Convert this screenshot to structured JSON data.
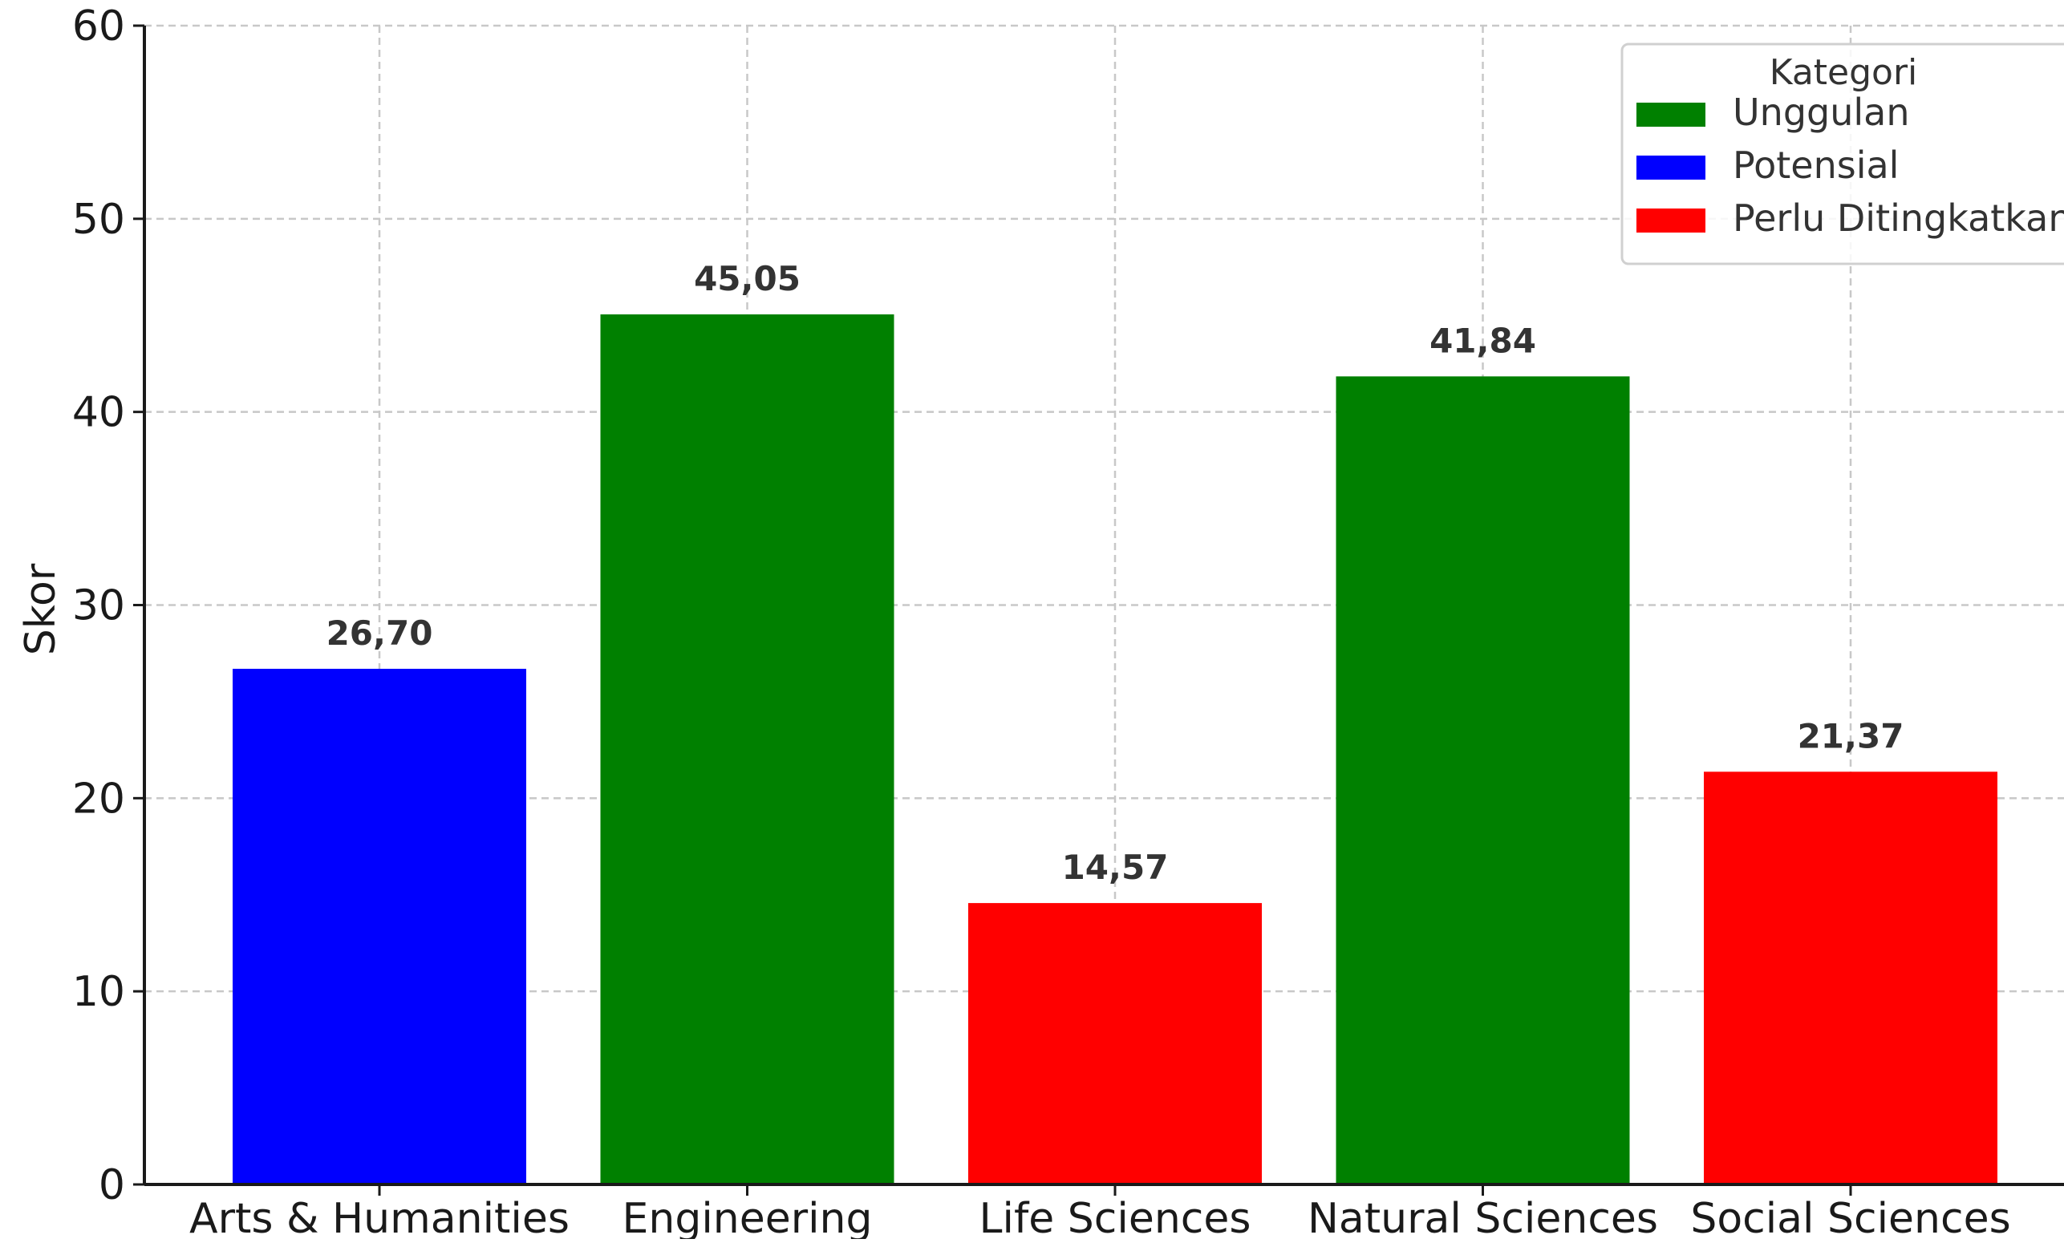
{
  "chart_data": {
    "type": "bar",
    "title": "",
    "xlabel": "",
    "ylabel": "Skor",
    "ylim": [
      0,
      60
    ],
    "yticks": [
      "0",
      "10",
      "20",
      "30",
      "40",
      "50",
      "60"
    ],
    "ytick_values": [
      0,
      10,
      20,
      30,
      40,
      50,
      60
    ],
    "categories": [
      "Arts & Humanities",
      "Engineering",
      "Life Sciences",
      "Natural Sciences",
      "Social Sciences"
    ],
    "values": [
      26.7,
      45.05,
      14.57,
      41.84,
      21.37
    ],
    "value_labels": [
      "26,70",
      "45,05",
      "14,57",
      "41,84",
      "21,37"
    ],
    "bar_category": [
      "Potensial",
      "Unggulan",
      "Perlu Ditingkatkan",
      "Unggulan",
      "Perlu Ditingkatkan"
    ],
    "grid": true,
    "legend": {
      "title": "Kategori",
      "placement": "top-right",
      "items": [
        {
          "label": "Unggulan",
          "color": "#008000"
        },
        {
          "label": "Potensial",
          "color": "#0000ff"
        },
        {
          "label": "Perlu Ditingkatkan",
          "color": "#ff0000"
        }
      ]
    }
  }
}
